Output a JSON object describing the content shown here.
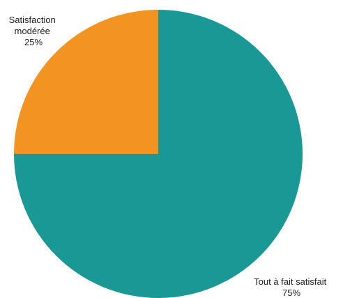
{
  "chart_data": {
    "type": "pie",
    "slices": [
      {
        "label_lines": [
          "Tout à fait satisfait"
        ],
        "value_label": "75%",
        "value": 75,
        "color": "#1a9896"
      },
      {
        "label_lines": [
          "Satisfaction",
          "modérée"
        ],
        "value_label": "25%",
        "value": 25,
        "color": "#f39322"
      }
    ],
    "start_angle_deg": 0,
    "direction": "clockwise",
    "legend": "none"
  }
}
